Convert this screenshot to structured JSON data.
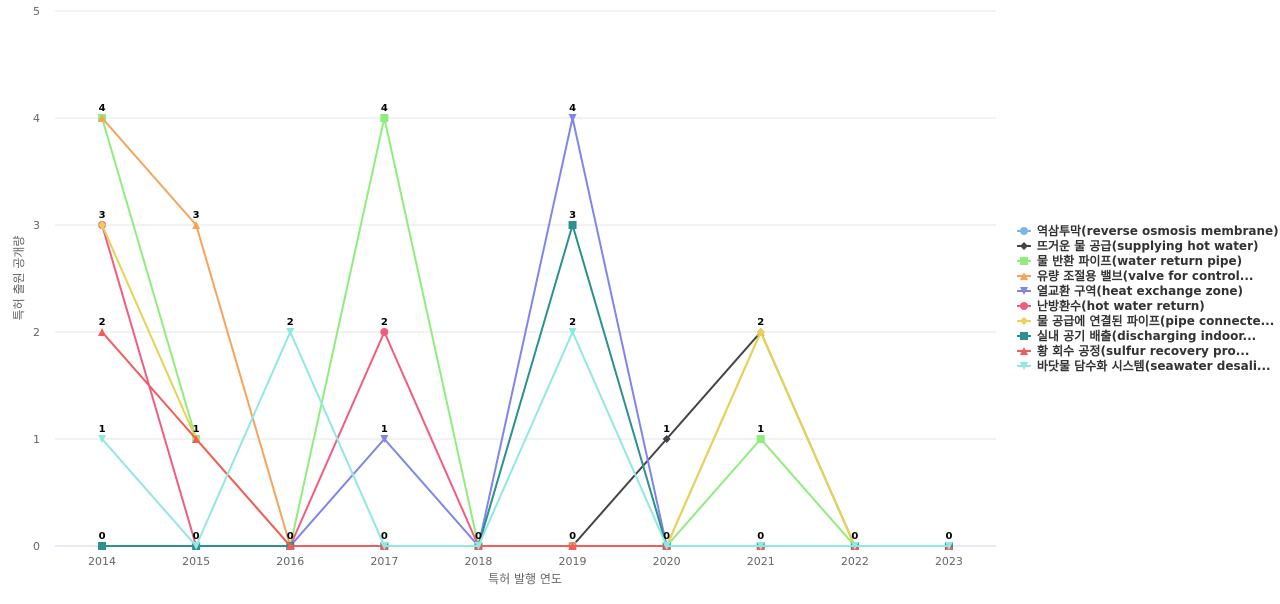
{
  "chart_data": {
    "type": "line",
    "xlabel": "특허 발행 연도",
    "ylabel": "특허 출원 공개량",
    "ylim": [
      0,
      5
    ],
    "y_ticks": [
      0,
      1,
      2,
      3,
      4,
      5
    ],
    "grid": true,
    "legend_position": "right",
    "categories": [
      "2014",
      "2015",
      "2016",
      "2017",
      "2018",
      "2019",
      "2020",
      "2021",
      "2022",
      "2023"
    ],
    "series": [
      {
        "name": "역삼투막(reverse osmosis membrane)",
        "color": "#7cb5ec",
        "marker": "circle",
        "values": [
          0,
          0,
          0,
          0,
          0,
          0,
          0,
          0,
          0,
          0
        ]
      },
      {
        "name": "뜨거운 물 공급(supplying hot water)",
        "color": "#434348",
        "marker": "diamond",
        "values": [
          0,
          0,
          0,
          0,
          0,
          0,
          1,
          2,
          0,
          0
        ]
      },
      {
        "name": "물 반환 파이프(water return pipe)",
        "color": "#90ed7d",
        "marker": "square",
        "values": [
          4,
          1,
          0,
          4,
          0,
          0,
          0,
          1,
          0,
          0
        ]
      },
      {
        "name": "유량 조절용 밸브(valve for control...",
        "color": "#f7a35c",
        "marker": "triangle",
        "values": [
          4,
          3,
          0,
          0,
          0,
          0,
          0,
          2,
          0,
          0
        ]
      },
      {
        "name": "열교환 구역(heat exchange zone)",
        "color": "#8085e9",
        "marker": "triangle-down",
        "values": [
          0,
          0,
          0,
          1,
          0,
          4,
          0,
          0,
          0,
          0
        ]
      },
      {
        "name": "난방환수(hot water return)",
        "color": "#f15c80",
        "marker": "circle",
        "values": [
          3,
          0,
          0,
          2,
          0,
          0,
          0,
          0,
          0,
          0
        ]
      },
      {
        "name": "물 공급에 연결된 파이프(pipe connecte...",
        "color": "#e4d354",
        "marker": "diamond",
        "values": [
          3,
          1,
          0,
          0,
          0,
          0,
          0,
          2,
          0,
          0
        ]
      },
      {
        "name": "실내 공기 배출(discharging indoor...",
        "color": "#2b908f",
        "marker": "square",
        "values": [
          0,
          0,
          0,
          0,
          0,
          3,
          0,
          0,
          0,
          0
        ]
      },
      {
        "name": "황 회수 공정(sulfur recovery pro...",
        "color": "#f45b5b",
        "marker": "triangle",
        "values": [
          2,
          1,
          0,
          0,
          0,
          0,
          0,
          0,
          0,
          0
        ]
      },
      {
        "name": "바닷물 담수화 시스템(seawater desali...",
        "color": "#91e8e1",
        "marker": "triangle-down",
        "values": [
          1,
          0,
          2,
          0,
          0,
          2,
          0,
          0,
          0,
          0
        ]
      }
    ],
    "data_labels": [
      {
        "category": "2014",
        "value": 4
      },
      {
        "category": "2014",
        "value": 3
      },
      {
        "category": "2014",
        "value": 2
      },
      {
        "category": "2014",
        "value": 1
      },
      {
        "category": "2014",
        "value": 0
      },
      {
        "category": "2015",
        "value": 3
      },
      {
        "category": "2015",
        "value": 1
      },
      {
        "category": "2015",
        "value": 0
      },
      {
        "category": "2016",
        "value": 2
      },
      {
        "category": "2016",
        "value": 0
      },
      {
        "category": "2017",
        "value": 4
      },
      {
        "category": "2017",
        "value": 2
      },
      {
        "category": "2017",
        "value": 1
      },
      {
        "category": "2017",
        "value": 0
      },
      {
        "category": "2018",
        "value": 0
      },
      {
        "category": "2019",
        "value": 4
      },
      {
        "category": "2019",
        "value": 3
      },
      {
        "category": "2019",
        "value": 2
      },
      {
        "category": "2019",
        "value": 0
      },
      {
        "category": "2020",
        "value": 1
      },
      {
        "category": "2020",
        "value": 0
      },
      {
        "category": "2021",
        "value": 2
      },
      {
        "category": "2021",
        "value": 1
      },
      {
        "category": "2021",
        "value": 0
      },
      {
        "category": "2022",
        "value": 0
      },
      {
        "category": "2023",
        "value": 0
      }
    ]
  }
}
